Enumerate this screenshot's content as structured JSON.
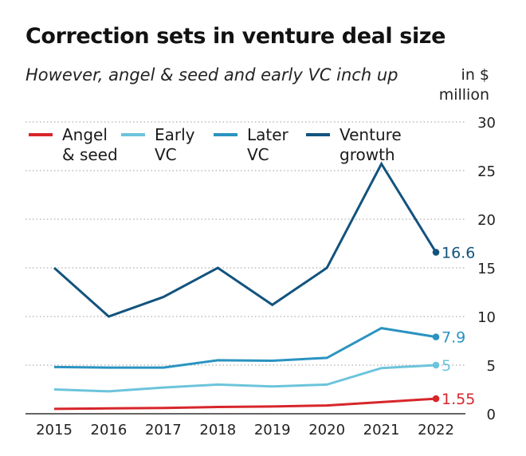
{
  "title": "Correction sets in venture deal size",
  "subtitle": "However, angel & seed and early VC inch up",
  "unit_label": [
    "in $",
    "million"
  ],
  "chart_data": {
    "type": "line",
    "x": [
      2015,
      2016,
      2017,
      2018,
      2019,
      2020,
      2021,
      2022
    ],
    "ylim": [
      0,
      30
    ],
    "yticks": [
      0,
      5,
      10,
      15,
      20,
      25,
      30
    ],
    "grid": "horizontal dotted",
    "legend_position": "top-left",
    "series": [
      {
        "name": "Angel & seed",
        "legend_lines": [
          "Angel",
          "& seed"
        ],
        "color": "#d7262b",
        "values": [
          0.5,
          0.55,
          0.6,
          0.7,
          0.75,
          0.85,
          1.2,
          1.55
        ],
        "end_label": "1.55"
      },
      {
        "name": "Early VC",
        "legend_lines": [
          "Early",
          "VC"
        ],
        "color": "#6cc4dc",
        "values": [
          2.5,
          2.3,
          2.7,
          3.0,
          2.8,
          3.0,
          4.7,
          5.0
        ],
        "end_label": "5"
      },
      {
        "name": "Later VC",
        "legend_lines": [
          "Later",
          "VC"
        ],
        "color": "#2a93c1",
        "values": [
          4.8,
          4.75,
          4.75,
          5.5,
          5.45,
          5.75,
          8.8,
          7.9
        ],
        "end_label": "7.9"
      },
      {
        "name": "Venture growth",
        "legend_lines": [
          "Venture",
          "growth"
        ],
        "color": "#12537e",
        "values": [
          15.0,
          10.0,
          12.0,
          15.0,
          11.2,
          15.0,
          25.7,
          16.6
        ],
        "end_label": "16.6"
      }
    ]
  }
}
